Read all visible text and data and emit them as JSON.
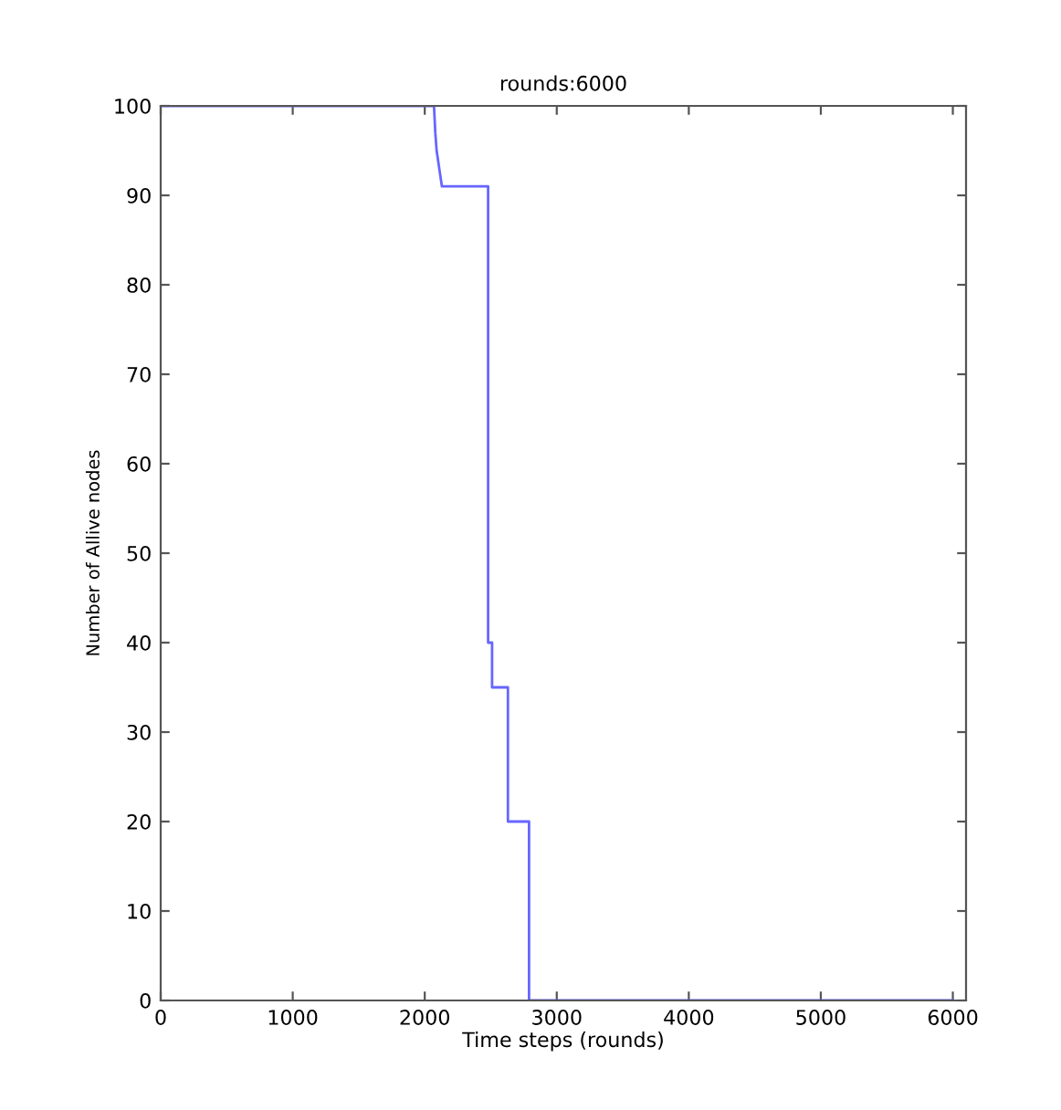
{
  "chart_data": {
    "type": "line",
    "title": "rounds:6000",
    "xlabel": "Time steps (rounds)",
    "ylabel": "Number of Allive nodes",
    "x": [
      0,
      2070,
      2080,
      2090,
      2100,
      2110,
      2130,
      2480,
      2480,
      2510,
      2510,
      2630,
      2630,
      2790,
      2790,
      6000
    ],
    "series": [
      {
        "color": "#6666ff",
        "values": [
          100,
          100,
          97,
          95,
          94,
          93,
          91,
          91,
          40,
          40,
          35,
          35,
          20,
          20,
          0,
          0
        ]
      }
    ],
    "xlim": [
      0,
      6100
    ],
    "xticks": [
      0,
      1000,
      2000,
      3000,
      4000,
      5000,
      6000
    ],
    "ylim": [
      0,
      100
    ],
    "yticks": [
      0,
      10,
      20,
      30,
      40,
      50,
      60,
      70,
      80,
      90,
      100
    ],
    "grid": false,
    "legend": false,
    "marker": "none",
    "line_style": "solid"
  }
}
